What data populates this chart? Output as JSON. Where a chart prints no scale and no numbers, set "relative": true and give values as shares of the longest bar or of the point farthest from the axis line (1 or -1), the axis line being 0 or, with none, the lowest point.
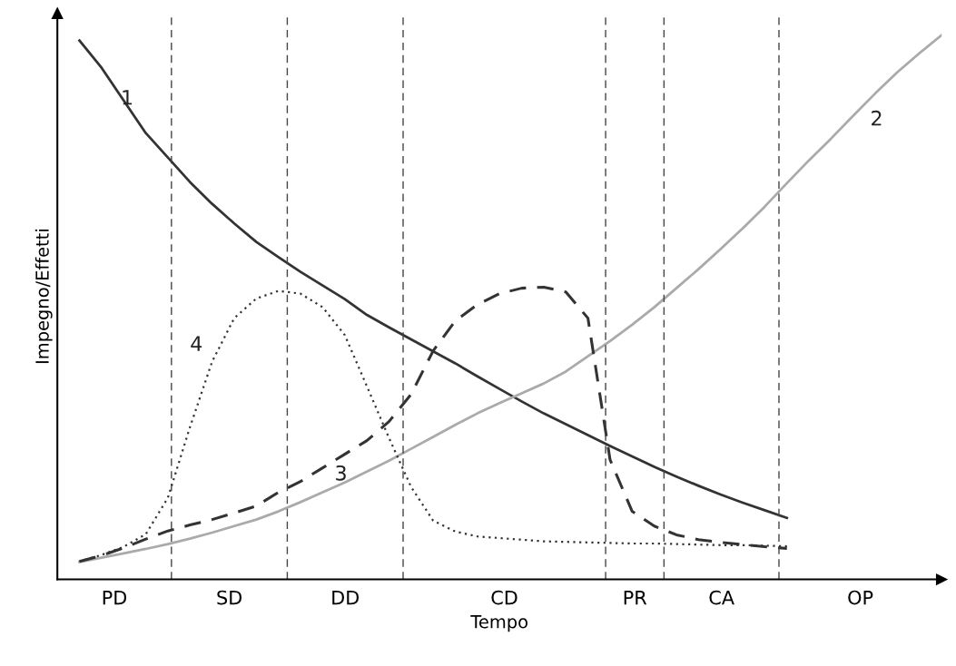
{
  "chart_data": {
    "type": "line",
    "relative": true,
    "xlabel": "Tempo",
    "ylabel": "Impegno/Effetti",
    "legend": false,
    "categories": [
      null,
      null,
      null,
      null,
      null,
      null,
      null,
      null,
      null,
      null,
      null,
      null,
      null,
      null,
      null,
      null,
      null,
      null,
      null,
      null,
      null,
      null,
      null,
      null,
      null,
      null,
      null,
      null,
      null,
      null,
      null,
      null,
      null,
      null,
      null,
      null,
      null,
      null,
      null,
      null,
      null
    ],
    "series": [
      {
        "name": "1",
        "color": "#333333",
        "line_style": "solid",
        "values": [
          null,
          0.99,
          0.94,
          0.88,
          0.82,
          0.775,
          0.73,
          0.69,
          0.654,
          0.62,
          0.592,
          0.565,
          0.54,
          0.515,
          0.486,
          0.463,
          0.441,
          0.419,
          0.397,
          0.373,
          0.35,
          0.327,
          0.305,
          0.285,
          0.265,
          0.245,
          0.226,
          0.207,
          0.189,
          0.172,
          0.156,
          0.141,
          0.127,
          0.113,
          null,
          null,
          null,
          null,
          null,
          null,
          null
        ]
      },
      {
        "name": "2",
        "color": "#aaaaaa",
        "line_style": "solid",
        "values": [
          null,
          0.032,
          0.04,
          0.048,
          0.056,
          0.065,
          0.075,
          0.086,
          0.098,
          0.11,
          0.125,
          0.142,
          0.16,
          0.178,
          0.198,
          0.218,
          0.24,
          0.262,
          0.284,
          0.305,
          0.324,
          0.342,
          0.36,
          0.382,
          0.41,
          0.438,
          0.468,
          0.5,
          0.535,
          0.57,
          0.607,
          0.645,
          0.685,
          0.728,
          0.77,
          0.81,
          0.852,
          0.893,
          0.932,
          0.967,
          1.0
        ]
      },
      {
        "name": "3",
        "color": "#333333",
        "line_style": "dashed",
        "values": [
          null,
          0.033,
          0.044,
          0.058,
          0.074,
          0.089,
          0.1,
          0.11,
          0.122,
          0.135,
          0.16,
          0.18,
          0.205,
          0.23,
          0.255,
          0.29,
          0.34,
          0.42,
          0.475,
          0.505,
          0.525,
          0.535,
          0.537,
          0.528,
          0.48,
          0.22,
          0.125,
          0.098,
          0.082,
          0.073,
          0.068,
          0.064,
          0.06,
          0.057,
          null,
          null,
          null,
          null,
          null,
          null,
          null
        ]
      },
      {
        "name": "4",
        "color": "#333333",
        "line_style": "dotted",
        "values": [
          null,
          0.033,
          0.045,
          0.06,
          0.083,
          0.15,
          0.28,
          0.4,
          0.48,
          0.516,
          0.53,
          0.525,
          0.5,
          0.449,
          0.355,
          0.26,
          0.17,
          0.108,
          0.088,
          0.079,
          0.076,
          0.073,
          0.07,
          0.069,
          0.068,
          0.067,
          0.066,
          0.066,
          0.065,
          0.064,
          0.063,
          0.063,
          0.062,
          0.061,
          null,
          null,
          null,
          null,
          null,
          null,
          null
        ]
      }
    ],
    "annotations": [
      "PD",
      "SD",
      "DD",
      "CD",
      "PR",
      "CA",
      "OP"
    ]
  }
}
